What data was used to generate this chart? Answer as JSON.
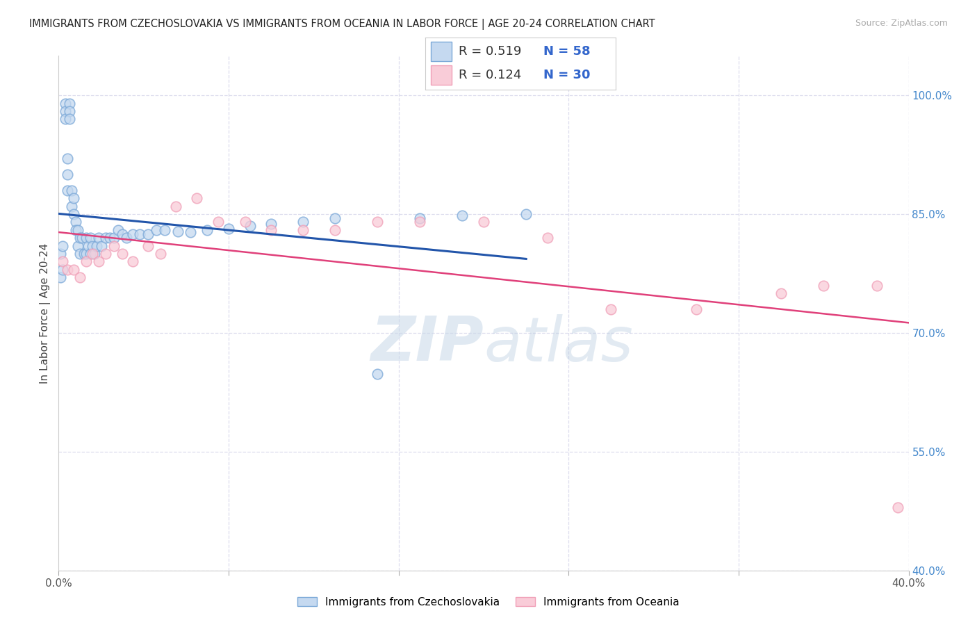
{
  "title": "IMMIGRANTS FROM CZECHOSLOVAKIA VS IMMIGRANTS FROM OCEANIA IN LABOR FORCE | AGE 20-24 CORRELATION CHART",
  "source": "Source: ZipAtlas.com",
  "ylabel": "In Labor Force | Age 20-24",
  "xlim": [
    0.0,
    0.4
  ],
  "ylim": [
    0.4,
    1.05
  ],
  "yticks_right": [
    1.0,
    0.85,
    0.7,
    0.55,
    0.4
  ],
  "yticklabels_right": [
    "100.0%",
    "85.0%",
    "70.0%",
    "55.0%",
    "40.0%"
  ],
  "background_color": "#ffffff",
  "grid_color": "#ddddee",
  "blue_scatter_color_face": "#c5d9f0",
  "blue_scatter_color_edge": "#7ca9d8",
  "pink_scatter_color_face": "#f9ccd8",
  "pink_scatter_color_edge": "#f0a0b8",
  "blue_line_color": "#2255aa",
  "pink_line_color": "#e0407a",
  "legend_R_blue": "0.519",
  "legend_N_blue": "58",
  "legend_R_pink": "0.124",
  "legend_N_pink": "30",
  "blue_x": [
    0.001,
    0.001,
    0.002,
    0.002,
    0.003,
    0.003,
    0.003,
    0.004,
    0.004,
    0.004,
    0.005,
    0.005,
    0.005,
    0.006,
    0.006,
    0.007,
    0.007,
    0.008,
    0.008,
    0.009,
    0.009,
    0.01,
    0.01,
    0.011,
    0.012,
    0.013,
    0.013,
    0.014,
    0.015,
    0.015,
    0.016,
    0.017,
    0.018,
    0.019,
    0.02,
    0.022,
    0.024,
    0.026,
    0.028,
    0.03,
    0.032,
    0.035,
    0.038,
    0.042,
    0.046,
    0.05,
    0.056,
    0.062,
    0.07,
    0.08,
    0.09,
    0.1,
    0.115,
    0.13,
    0.15,
    0.17,
    0.19,
    0.22
  ],
  "blue_y": [
    0.8,
    0.77,
    0.81,
    0.78,
    0.99,
    0.98,
    0.97,
    0.92,
    0.9,
    0.88,
    0.99,
    0.98,
    0.97,
    0.88,
    0.86,
    0.87,
    0.85,
    0.84,
    0.83,
    0.83,
    0.81,
    0.82,
    0.8,
    0.82,
    0.8,
    0.82,
    0.8,
    0.81,
    0.82,
    0.8,
    0.81,
    0.8,
    0.81,
    0.82,
    0.81,
    0.82,
    0.82,
    0.82,
    0.83,
    0.825,
    0.82,
    0.825,
    0.825,
    0.825,
    0.83,
    0.83,
    0.828,
    0.827,
    0.83,
    0.832,
    0.835,
    0.838,
    0.84,
    0.845,
    0.648,
    0.845,
    0.848,
    0.85
  ],
  "pink_x": [
    0.002,
    0.004,
    0.007,
    0.01,
    0.013,
    0.016,
    0.019,
    0.022,
    0.026,
    0.03,
    0.035,
    0.042,
    0.048,
    0.055,
    0.065,
    0.075,
    0.088,
    0.1,
    0.115,
    0.13,
    0.15,
    0.17,
    0.2,
    0.23,
    0.26,
    0.3,
    0.34,
    0.36,
    0.385,
    0.395
  ],
  "pink_y": [
    0.79,
    0.78,
    0.78,
    0.77,
    0.79,
    0.8,
    0.79,
    0.8,
    0.81,
    0.8,
    0.79,
    0.81,
    0.8,
    0.86,
    0.87,
    0.84,
    0.84,
    0.83,
    0.83,
    0.83,
    0.84,
    0.84,
    0.84,
    0.82,
    0.73,
    0.73,
    0.75,
    0.76,
    0.76,
    0.48
  ]
}
